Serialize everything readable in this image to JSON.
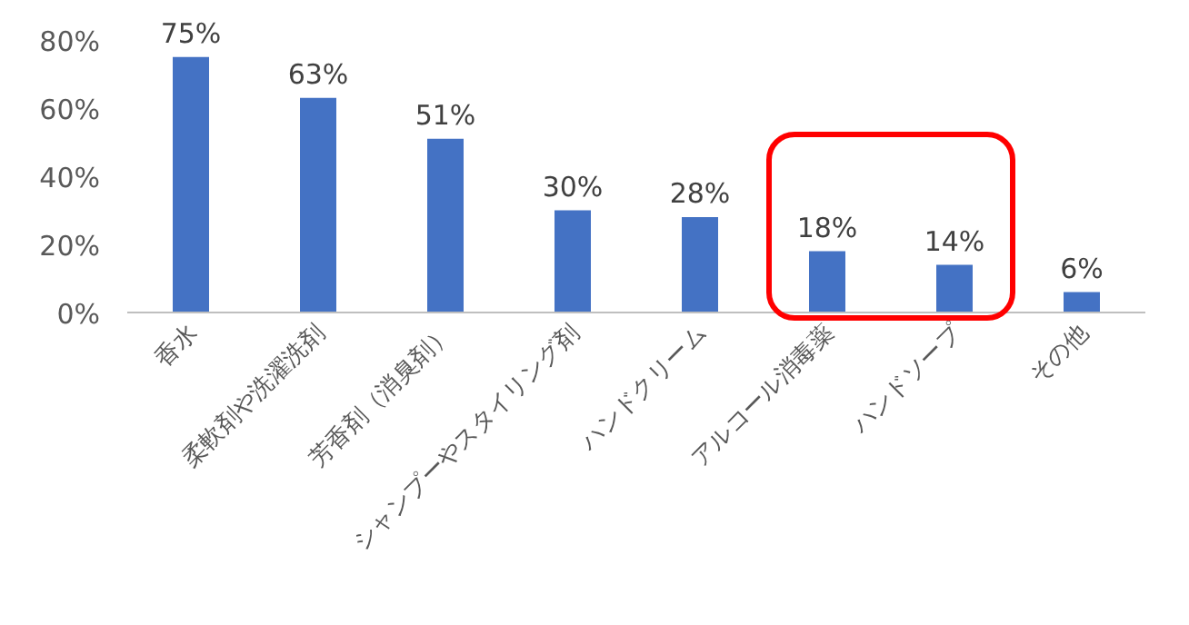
{
  "chart_data": {
    "type": "bar",
    "categories": [
      "香水",
      "柔軟剤や洗濯洗剤",
      "芳香剤（消臭剤）",
      "シャンプーやスタイリング剤",
      "ハンドクリーム",
      "アルコール消毒薬",
      "ハンドソープ",
      "その他"
    ],
    "values": [
      75,
      63,
      51,
      30,
      28,
      18,
      14,
      6
    ],
    "value_labels": [
      "75%",
      "63%",
      "51%",
      "30%",
      "28%",
      "18%",
      "14%",
      "6%"
    ],
    "color": "#4472c4",
    "ylim": [
      0,
      80
    ],
    "yticks": [
      {
        "value": 0,
        "label": "0%"
      },
      {
        "value": 20,
        "label": "20%"
      },
      {
        "value": 40,
        "label": "40%"
      },
      {
        "value": 60,
        "label": "60%"
      },
      {
        "value": 80,
        "label": "80%"
      }
    ],
    "grid": false
  }
}
